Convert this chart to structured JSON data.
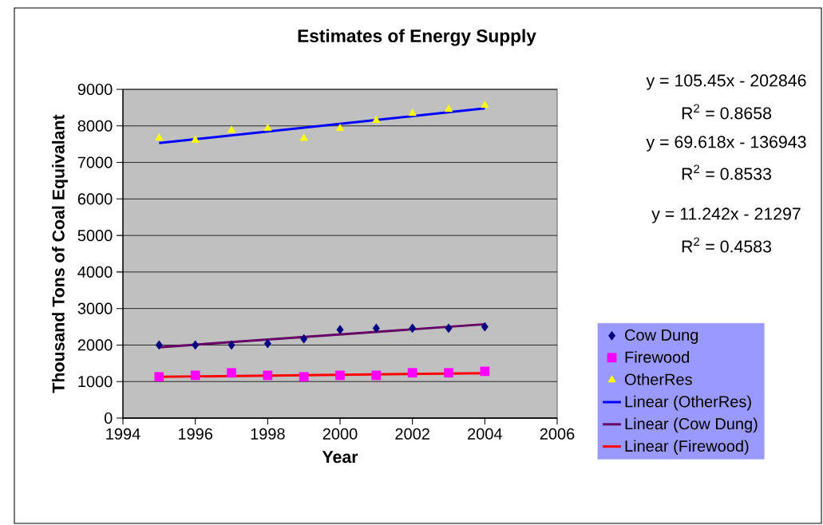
{
  "chart_data": {
    "type": "scatter",
    "title": "Estimates of Energy Supply",
    "xlabel": "Year",
    "ylabel": "Thousand Tons of Coal Equivalant",
    "xlim": [
      1994,
      2006
    ],
    "xticks": [
      1994,
      1996,
      1998,
      2000,
      2002,
      2004,
      2006
    ],
    "ylim": [
      0,
      9000
    ],
    "yticks": [
      0,
      1000,
      2000,
      3000,
      4000,
      5000,
      6000,
      7000,
      8000,
      9000
    ],
    "grid": "y",
    "legend": "right",
    "series": [
      {
        "name": "Cow Dung",
        "marker": "diamond",
        "color": "#000080",
        "x": [
          1995,
          1996,
          1997,
          1998,
          1999,
          2000,
          2001,
          2002,
          2003,
          2004
        ],
        "values": [
          2000,
          2000,
          2000,
          2040,
          2170,
          2420,
          2460,
          2460,
          2460,
          2500
        ]
      },
      {
        "name": "Firewood",
        "marker": "square",
        "color": "#ff00ff",
        "x": [
          1995,
          1996,
          1997,
          1998,
          1999,
          2000,
          2001,
          2002,
          2003,
          2004
        ],
        "values": [
          1130,
          1170,
          1240,
          1170,
          1130,
          1170,
          1170,
          1240,
          1240,
          1280
        ]
      },
      {
        "name": "OtherRes",
        "marker": "triangle",
        "color": "#ffff00",
        "x": [
          1995,
          1996,
          1997,
          1998,
          1999,
          2000,
          2001,
          2002,
          2003,
          2004
        ],
        "values": [
          7670,
          7610,
          7880,
          7930,
          7660,
          7930,
          8150,
          8340,
          8450,
          8560
        ]
      },
      {
        "name": "Linear (OtherRes)",
        "type": "line",
        "marker": "none",
        "color": "#0000ff",
        "x": [
          1995,
          2004
        ],
        "values": [
          7530,
          8480
        ]
      },
      {
        "name": "Linear (Cow Dung)",
        "type": "line",
        "marker": "none",
        "color": "#660066",
        "x": [
          1995,
          2004
        ],
        "values": [
          1940,
          2570
        ]
      },
      {
        "name": "Linear (Firewood)",
        "type": "line",
        "marker": "none",
        "color": "#ff0000",
        "x": [
          1995,
          2004
        ],
        "values": [
          1130,
          1230
        ]
      }
    ],
    "annotations": [
      "y = 105.45x - 202846",
      "R$^{2}$ = 0.8658",
      "y = 69.618x - 136943",
      "R$^{2}$ = 0.8533",
      "y = 11.242x - 21297",
      "R$^{2}$ = 0.4583"
    ]
  }
}
